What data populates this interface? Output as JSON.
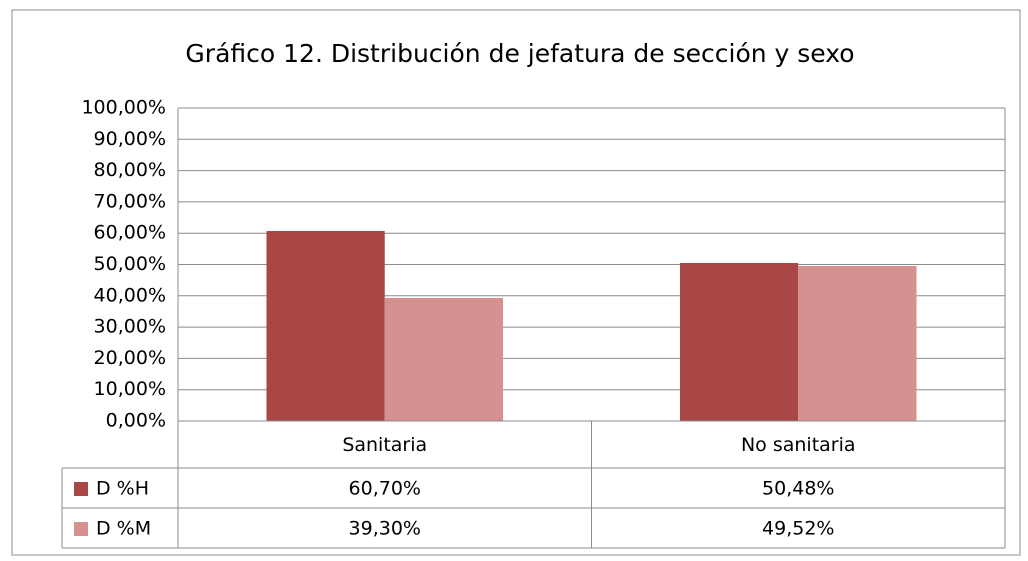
{
  "chart_data": {
    "type": "bar",
    "title": "Gráfico 12. Distribución de jefatura de sección y sexo",
    "categories": [
      "Sanitaria",
      "No sanitaria"
    ],
    "series": [
      {
        "name": "D %H",
        "color": "#a84745",
        "values": [
          60.7,
          50.48
        ],
        "value_labels": [
          "60,70%",
          "50,48%"
        ]
      },
      {
        "name": "D %M",
        "color": "#d49190",
        "values": [
          39.3,
          49.52
        ],
        "value_labels": [
          "39,30%",
          "49,52%"
        ]
      }
    ],
    "ylim": [
      0,
      100
    ],
    "yticks": [
      {
        "value": 0,
        "label": "0,00%"
      },
      {
        "value": 10,
        "label": "10,00%"
      },
      {
        "value": 20,
        "label": "20,00%"
      },
      {
        "value": 30,
        "label": "30,00%"
      },
      {
        "value": 40,
        "label": "40,00%"
      },
      {
        "value": 50,
        "label": "50,00%"
      },
      {
        "value": 60,
        "label": "60,00%"
      },
      {
        "value": 70,
        "label": "70,00%"
      },
      {
        "value": 80,
        "label": "80,00%"
      },
      {
        "value": 90,
        "label": "90,00%"
      },
      {
        "value": 100,
        "label": "100,00%"
      }
    ],
    "grid": true
  }
}
